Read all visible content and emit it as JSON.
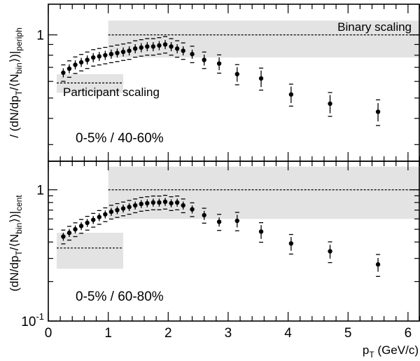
{
  "chart_data": [
    {
      "type": "scatter",
      "panel": "top",
      "ratio_label": "0-5% / 40-60%",
      "ylabel_parts": {
        "a": "/ (dN/dp",
        "b": "T",
        "c": "/⟨N",
        "d": "bin",
        "e": "⟩)|",
        "f": "periph"
      },
      "ylim": [
        0.25,
        1.4
      ],
      "log_y": true,
      "yticks_labeled": [
        {
          "value": 1,
          "label": "1"
        }
      ],
      "annotations": {
        "binary": "Binary scaling",
        "participant": "Participant scaling"
      },
      "binary_scaling": {
        "value": 1.0,
        "x_from": 1.0,
        "band": [
          0.78,
          1.17
        ]
      },
      "participant_scaling": {
        "value": 0.59,
        "x_from": 0.0,
        "x_to": 1.25,
        "band": [
          0.53,
          0.65
        ]
      },
      "series": [
        {
          "x": [
            0.25,
            0.35,
            0.45,
            0.55,
            0.65,
            0.75,
            0.85,
            0.95,
            1.05,
            1.15,
            1.25,
            1.35,
            1.45,
            1.55,
            1.65,
            1.75,
            1.85,
            1.95,
            2.05,
            2.15,
            2.25,
            2.4,
            2.6,
            2.85,
            3.15,
            3.55,
            4.05,
            4.7,
            5.5
          ],
          "y": [
            0.66,
            0.69,
            0.72,
            0.74,
            0.76,
            0.78,
            0.79,
            0.8,
            0.81,
            0.82,
            0.83,
            0.84,
            0.86,
            0.87,
            0.88,
            0.88,
            0.89,
            0.9,
            0.88,
            0.86,
            0.84,
            0.81,
            0.76,
            0.73,
            0.65,
            0.62,
            0.52,
            0.47,
            0.43
          ],
          "err": [
            0.05,
            0.05,
            0.05,
            0.05,
            0.05,
            0.05,
            0.05,
            0.05,
            0.05,
            0.05,
            0.05,
            0.05,
            0.05,
            0.05,
            0.05,
            0.05,
            0.05,
            0.05,
            0.05,
            0.05,
            0.05,
            0.05,
            0.06,
            0.07,
            0.08,
            0.09,
            0.09,
            0.1,
            0.1
          ],
          "sys": [
            0.09,
            0.09,
            0.09,
            0.09,
            0.09,
            0.09,
            0.09,
            0.09,
            0.09,
            0.09,
            0.09,
            0.09,
            0.09,
            0.09,
            0.09,
            0.09,
            0.09,
            0.09,
            0.09,
            0.09,
            0.09,
            0.09,
            0.09,
            0.1,
            0.11,
            0.12,
            0.12,
            0.13,
            0.14
          ]
        }
      ]
    },
    {
      "type": "scatter",
      "panel": "bottom",
      "ratio_label": "0-5% / 60-80%",
      "ylabel_parts": {
        "a": "(dN/dp",
        "b": "T",
        "c": "/⟨N",
        "d": "bin",
        "e": "⟩)|",
        "f": "cent"
      },
      "ylim": [
        0.1,
        1.65
      ],
      "log_y": true,
      "yticks_labeled": [
        {
          "value": 1,
          "label": "1"
        },
        {
          "value": 0.1,
          "label": "10",
          "sup": "-1"
        }
      ],
      "binary_scaling": {
        "value": 1.0,
        "x_from": 1.0,
        "band": [
          0.6,
          1.5
        ]
      },
      "participant_scaling": {
        "value": 0.36,
        "x_from": 0.0,
        "x_to": 1.25,
        "band": [
          0.25,
          0.47
        ]
      },
      "series": [
        {
          "x": [
            0.25,
            0.35,
            0.45,
            0.55,
            0.65,
            0.75,
            0.85,
            0.95,
            1.05,
            1.15,
            1.25,
            1.35,
            1.45,
            1.55,
            1.65,
            1.75,
            1.85,
            1.95,
            2.05,
            2.15,
            2.25,
            2.4,
            2.6,
            2.85,
            3.15,
            3.55,
            4.05,
            4.7,
            5.5
          ],
          "y": [
            0.44,
            0.47,
            0.5,
            0.53,
            0.56,
            0.59,
            0.62,
            0.65,
            0.68,
            0.7,
            0.72,
            0.74,
            0.76,
            0.78,
            0.79,
            0.8,
            0.8,
            0.81,
            0.79,
            0.8,
            0.76,
            0.71,
            0.64,
            0.57,
            0.58,
            0.48,
            0.39,
            0.34,
            0.27
          ],
          "err": [
            0.07,
            0.07,
            0.07,
            0.07,
            0.07,
            0.07,
            0.07,
            0.07,
            0.07,
            0.07,
            0.07,
            0.07,
            0.07,
            0.07,
            0.07,
            0.07,
            0.07,
            0.07,
            0.07,
            0.07,
            0.07,
            0.07,
            0.08,
            0.08,
            0.11,
            0.12,
            0.12,
            0.12,
            0.12
          ],
          "sys": [
            0.12,
            0.12,
            0.12,
            0.12,
            0.12,
            0.12,
            0.12,
            0.12,
            0.12,
            0.12,
            0.12,
            0.12,
            0.12,
            0.12,
            0.12,
            0.12,
            0.12,
            0.12,
            0.12,
            0.12,
            0.12,
            0.12,
            0.13,
            0.14,
            0.16,
            0.17,
            0.17,
            0.18,
            0.19
          ]
        }
      ]
    }
  ],
  "x_axis": {
    "range": [
      0,
      6.2
    ],
    "ticks": [
      0,
      1,
      2,
      3,
      4,
      5,
      6
    ],
    "minor_step": 0.2,
    "label": {
      "main": "p",
      "sub": "T",
      "rest": " (GeV/c)"
    }
  },
  "colors": {
    "band": "#e3e3e3",
    "marker": "#000000",
    "axis": "#000000"
  }
}
